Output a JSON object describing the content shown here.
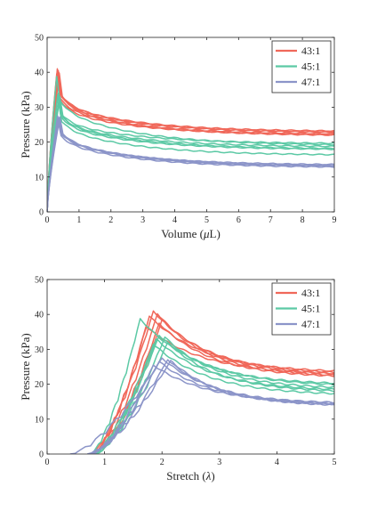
{
  "chart_data": [
    {
      "type": "line",
      "xlabel_prefix": "Volume (",
      "xlabel_symbol": "μ",
      "xlabel_suffix": "L)",
      "ylabel": "Pressure (kPa)",
      "xlim": [
        0,
        9
      ],
      "ylim": [
        0,
        50
      ],
      "xticks": [
        "0",
        "1",
        "2",
        "3",
        "4",
        "5",
        "6",
        "7",
        "8",
        "9"
      ],
      "yticks": [
        "0",
        "10",
        "20",
        "30",
        "40",
        "50"
      ],
      "grid": false,
      "legend": "top-right",
      "series": [
        {
          "name": "43:1",
          "color": "#f0685a",
          "curves": [
            {
              "peak": [
                0.32,
                41.0
              ],
              "end": 22.6
            },
            {
              "peak": [
                0.35,
                40.5
              ],
              "end": 23.0
            },
            {
              "peak": [
                0.3,
                39.5
              ],
              "end": 22.2
            },
            {
              "peak": [
                0.38,
                39.8
              ],
              "end": 22.8
            },
            {
              "peak": [
                0.33,
                38.5
              ],
              "end": 22.0
            },
            {
              "peak": [
                0.36,
                40.0
              ],
              "end": 21.8
            }
          ]
        },
        {
          "name": "45:1",
          "color": "#5cc9a5",
          "curves": [
            {
              "peak": [
                0.3,
                38.8
              ],
              "end": 19.0
            },
            {
              "peak": [
                0.35,
                34.0
              ],
              "end": 19.5
            },
            {
              "peak": [
                0.33,
                33.5
              ],
              "end": 18.6
            },
            {
              "peak": [
                0.4,
                33.0
              ],
              "end": 18.0
            },
            {
              "peak": [
                0.38,
                32.5
              ],
              "end": 17.8
            },
            {
              "peak": [
                0.36,
                31.5
              ],
              "end": 16.2
            }
          ]
        },
        {
          "name": "47:1",
          "color": "#8c95c9",
          "curves": [
            {
              "peak": [
                0.33,
                27.5
              ],
              "end": 13.2
            },
            {
              "peak": [
                0.36,
                27.0
              ],
              "end": 12.9
            },
            {
              "peak": [
                0.38,
                26.8
              ],
              "end": 13.4
            },
            {
              "peak": [
                0.34,
                26.3
              ],
              "end": 12.7
            },
            {
              "peak": [
                0.4,
                27.2
              ],
              "end": 13.0
            }
          ]
        }
      ]
    },
    {
      "type": "line",
      "xlabel_prefix": "Stretch (",
      "xlabel_symbol": "λ",
      "xlabel_suffix": ")",
      "ylabel": "Pressure (kPa)",
      "xlim": [
        0,
        5
      ],
      "ylim": [
        0,
        50
      ],
      "xticks": [
        "0",
        "1",
        "2",
        "3",
        "4",
        "5"
      ],
      "yticks": [
        "0",
        "10",
        "20",
        "30",
        "40",
        "50"
      ],
      "grid": false,
      "legend": "top-right",
      "series": [
        {
          "name": "43:1",
          "color": "#f0685a",
          "curves": [
            {
              "start": 0.75,
              "peak": [
                1.85,
                41.0
              ],
              "end": 22.8
            },
            {
              "start": 0.8,
              "peak": [
                1.92,
                40.2
              ],
              "end": 22.4
            },
            {
              "start": 0.78,
              "peak": [
                1.78,
                39.5
              ],
              "end": 23.2
            },
            {
              "start": 0.85,
              "peak": [
                2.0,
                38.5
              ],
              "end": 22.0
            },
            {
              "start": 0.82,
              "peak": [
                1.95,
                37.5
              ],
              "end": 21.8
            },
            {
              "start": 0.8,
              "peak": [
                1.72,
                36.5
              ],
              "end": 22.6
            }
          ]
        },
        {
          "name": "45:1",
          "color": "#5cc9a5",
          "curves": [
            {
              "start": 0.75,
              "peak": [
                1.62,
                38.8
              ],
              "end": 19.2
            },
            {
              "start": 0.8,
              "peak": [
                1.95,
                34.0
              ],
              "end": 19.8
            },
            {
              "start": 0.82,
              "peak": [
                2.05,
                33.5
              ],
              "end": 18.6
            },
            {
              "start": 0.85,
              "peak": [
                1.9,
                33.0
              ],
              "end": 18.0
            },
            {
              "start": 0.8,
              "peak": [
                2.1,
                32.0
              ],
              "end": 17.6
            },
            {
              "start": 0.78,
              "peak": [
                1.85,
                31.5
              ],
              "end": 16.8
            }
          ]
        },
        {
          "name": "47:1",
          "color": "#8c95c9",
          "curves": [
            {
              "start": 0.4,
              "peak": [
                2.0,
                27.5
              ],
              "end": 14.2
            },
            {
              "start": 0.7,
              "peak": [
                2.1,
                27.0
              ],
              "end": 13.8
            },
            {
              "start": 0.75,
              "peak": [
                1.95,
                26.5
              ],
              "end": 14.0
            },
            {
              "start": 0.72,
              "peak": [
                2.15,
                26.8
              ],
              "end": 13.6
            },
            {
              "start": 0.78,
              "peak": [
                1.85,
                25.5
              ],
              "end": 14.4
            }
          ]
        }
      ]
    }
  ]
}
